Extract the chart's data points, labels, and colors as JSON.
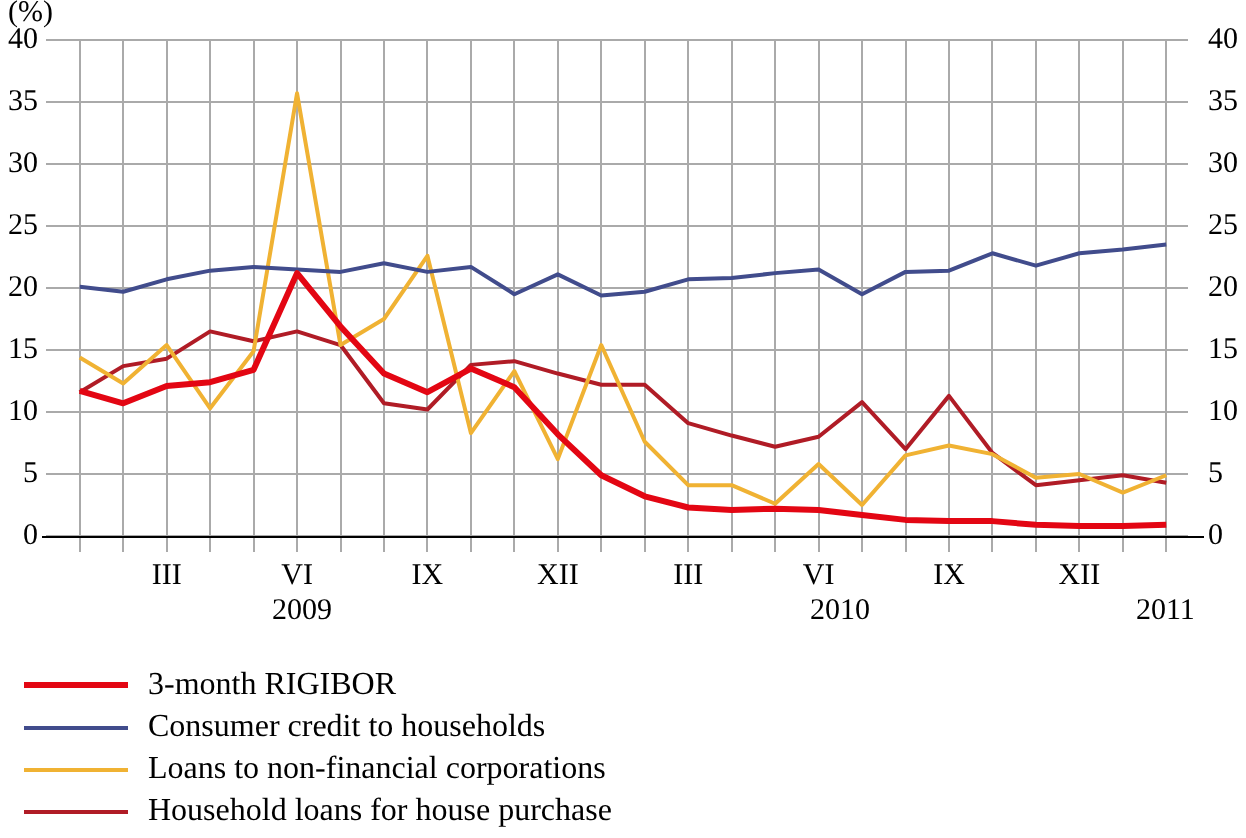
{
  "chart_data": {
    "type": "line",
    "ylabel": "(%)",
    "categories": [
      null,
      null,
      "III",
      null,
      null,
      "VI",
      null,
      null,
      "IX",
      null,
      null,
      "XII",
      null,
      null,
      "III",
      null,
      null,
      "VI",
      null,
      null,
      "IX",
      null,
      null,
      "XII",
      null,
      null
    ],
    "series": [
      {
        "name": "3-month RIGIBOR",
        "color": "#e30613",
        "values": [
          11.7,
          10.7,
          12.1,
          12.4,
          13.4,
          21.2,
          16.9,
          13.1,
          11.6,
          13.5,
          12.0,
          8.2,
          4.9,
          3.2,
          2.3,
          2.1,
          2.2,
          2.1,
          1.7,
          1.3,
          1.2,
          1.2,
          0.9,
          0.8,
          0.8,
          0.9
        ]
      },
      {
        "name": "Consumer credit to households",
        "color": "#414c8c",
        "values": [
          20.1,
          19.7,
          20.7,
          21.4,
          21.7,
          21.5,
          21.3,
          22.0,
          21.3,
          21.7,
          19.5,
          21.1,
          19.4,
          19.7,
          20.7,
          20.8,
          21.2,
          21.5,
          19.5,
          21.3,
          21.4,
          22.8,
          21.8,
          22.8,
          23.1,
          23.5
        ]
      },
      {
        "name": "Loans to non-financial corporations",
        "color": "#f0b233",
        "values": [
          14.4,
          12.3,
          15.4,
          10.3,
          14.9,
          35.7,
          15.4,
          17.5,
          22.6,
          8.3,
          13.3,
          6.2,
          15.4,
          7.6,
          4.1,
          4.1,
          2.6,
          5.8,
          2.5,
          6.5,
          7.3,
          6.6,
          4.7,
          5.0,
          3.5,
          4.9
        ]
      },
      {
        "name": "Household loans for house purchase",
        "color": "#b01c26",
        "values": [
          11.6,
          13.7,
          14.3,
          16.5,
          15.7,
          16.5,
          15.4,
          10.7,
          10.2,
          13.8,
          14.1,
          13.1,
          12.2,
          12.2,
          9.1,
          8.1,
          7.2,
          8.0,
          10.8,
          7.0,
          11.3,
          6.7,
          4.1,
          4.5,
          4.9,
          4.3
        ]
      }
    ],
    "ylim": [
      0,
      40
    ],
    "yticks": [
      0,
      5,
      10,
      15,
      20,
      25,
      30,
      35,
      40
    ],
    "y2lim": [
      0,
      40
    ],
    "y2ticks": [
      0,
      5,
      10,
      15,
      20,
      25,
      30,
      35,
      40
    ],
    "annotations": [
      "2009",
      "2010",
      "2011"
    ],
    "grid": true,
    "legend": "bottom",
    "marker": "none",
    "line_style": "solid"
  }
}
